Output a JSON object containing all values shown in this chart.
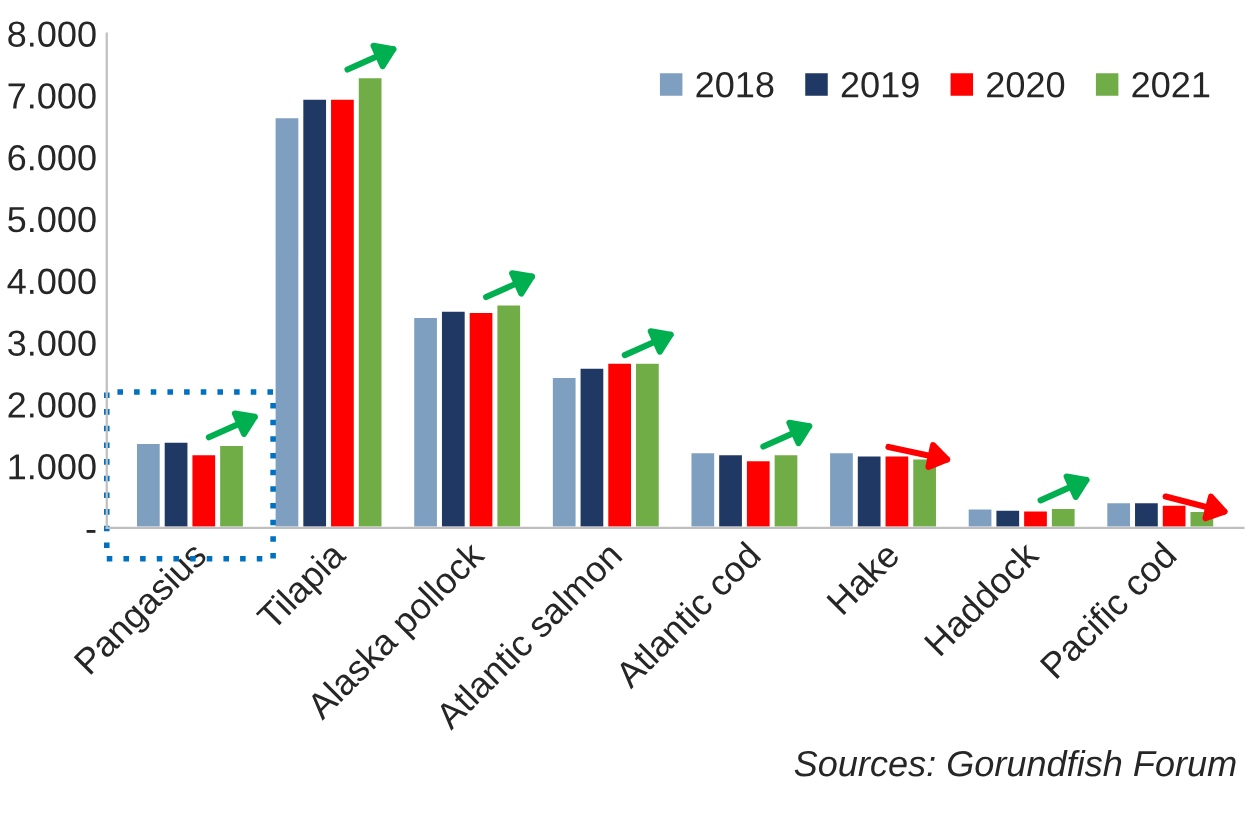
{
  "chart_data": {
    "type": "bar",
    "categories": [
      "Pangasius",
      "Tilapia",
      "Alaska pollock",
      "Atlantic salmon",
      "Atlantic cod",
      "Hake",
      "Haddock",
      "Pacific cod"
    ],
    "series": [
      {
        "name": "2018",
        "color": "#7f9fc1",
        "values": [
          1380,
          6650,
          3420,
          2450,
          1230,
          1230,
          320,
          420
        ]
      },
      {
        "name": "2019",
        "color": "#1f3864",
        "values": [
          1400,
          6950,
          3520,
          2600,
          1200,
          1180,
          300,
          420
        ]
      },
      {
        "name": "2020",
        "color": "#ff0000",
        "values": [
          1200,
          6950,
          3500,
          2680,
          1100,
          1180,
          290,
          380
        ]
      },
      {
        "name": "2021",
        "color": "#70ad47",
        "values": [
          1350,
          7300,
          3620,
          2680,
          1200,
          1130,
          330,
          280
        ]
      }
    ],
    "ylim": [
      0,
      8000
    ],
    "yticks": [
      {
        "value": 0,
        "label": "-"
      },
      {
        "value": 1000,
        "label": "1.000"
      },
      {
        "value": 2000,
        "label": "2.000"
      },
      {
        "value": 3000,
        "label": "3.000"
      },
      {
        "value": 4000,
        "label": "4.000"
      },
      {
        "value": 5000,
        "label": "5.000"
      },
      {
        "value": 6000,
        "label": "6.000"
      },
      {
        "value": 7000,
        "label": "7.000"
      },
      {
        "value": 8000,
        "label": "8.000"
      }
    ],
    "grid": false,
    "legend": "top right",
    "annotations": [
      "Sources: Gorundfish Forum"
    ]
  }
}
